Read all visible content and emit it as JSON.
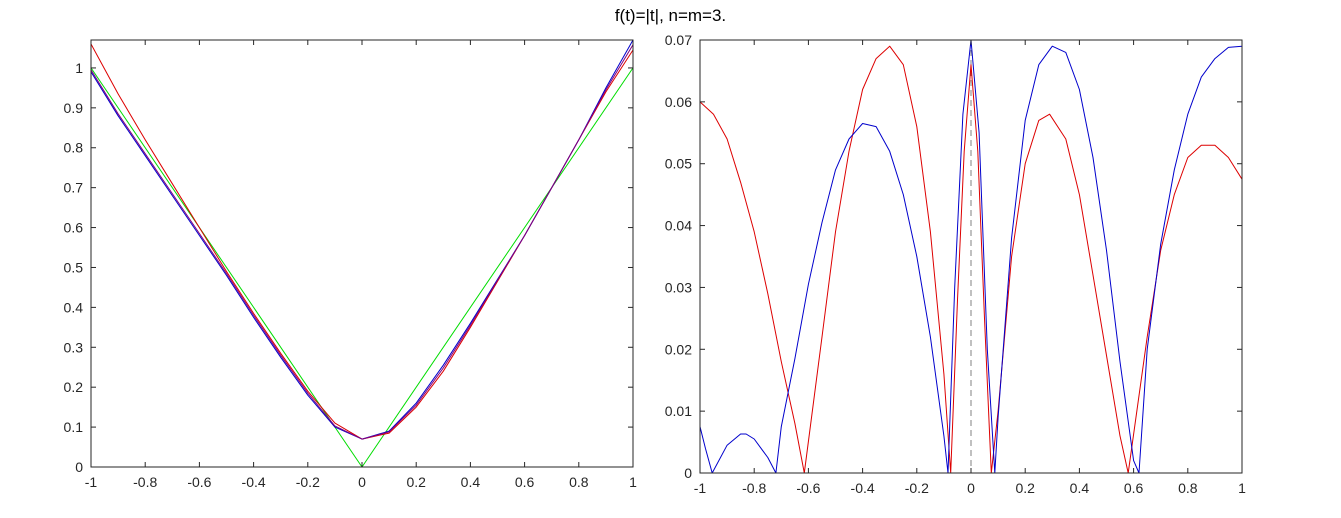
{
  "figure": {
    "title": "f(t)=|t|, n=m=3."
  },
  "chart_data": [
    {
      "type": "line",
      "title": "",
      "xlabel": "",
      "ylabel": "",
      "xlim": [
        -1,
        1
      ],
      "ylim": [
        0,
        1.07
      ],
      "xticks": [
        -1,
        -0.8,
        -0.6,
        -0.4,
        -0.2,
        0,
        0.2,
        0.4,
        0.6,
        0.8,
        1
      ],
      "xtick_labels": [
        "-1",
        "-0.8",
        "-0.6",
        "-0.4",
        "-0.2",
        "0",
        "0.2",
        "0.4",
        "0.6",
        "0.8",
        "1"
      ],
      "yticks": [
        0,
        0.1,
        0.2,
        0.3,
        0.4,
        0.5,
        0.6,
        0.7,
        0.8,
        0.9,
        1
      ],
      "ytick_labels": [
        "0",
        "0.1",
        "0.2",
        "0.3",
        "0.4",
        "0.5",
        "0.6",
        "0.7",
        "0.8",
        "0.9",
        "1"
      ],
      "grid": false,
      "legend": "none",
      "series": [
        {
          "color": "#00dd00",
          "x": [
            -1,
            0,
            1
          ],
          "y": [
            1,
            0,
            1
          ]
        },
        {
          "color": "#dd0000",
          "x": [
            -1,
            -0.9,
            -0.8,
            -0.7,
            -0.6,
            -0.5,
            -0.4,
            -0.3,
            -0.2,
            -0.1,
            0,
            0.1,
            0.2,
            0.3,
            0.4,
            0.5,
            0.6,
            0.7,
            0.8,
            0.9,
            1
          ],
          "y": [
            1.06,
            0.935,
            0.82,
            0.71,
            0.6,
            0.49,
            0.385,
            0.285,
            0.19,
            0.11,
            0.07,
            0.085,
            0.15,
            0.24,
            0.35,
            0.465,
            0.58,
            0.7,
            0.82,
            0.94,
            1.045
          ]
        },
        {
          "color": "#0000cc",
          "x": [
            -1,
            -0.9,
            -0.8,
            -0.7,
            -0.6,
            -0.5,
            -0.4,
            -0.3,
            -0.2,
            -0.1,
            0,
            0.1,
            0.2,
            0.3,
            0.4,
            0.5,
            0.6,
            0.7,
            0.8,
            0.9,
            1
          ],
          "y": [
            0.99,
            0.88,
            0.78,
            0.68,
            0.58,
            0.48,
            0.375,
            0.275,
            0.18,
            0.1,
            0.07,
            0.09,
            0.16,
            0.255,
            0.36,
            0.47,
            0.58,
            0.7,
            0.82,
            0.95,
            1.07
          ]
        },
        {
          "color": "#800080",
          "x": [
            -1,
            -0.9,
            -0.8,
            -0.7,
            -0.6,
            -0.5,
            -0.4,
            -0.3,
            -0.2,
            -0.1,
            0,
            0.1,
            0.2,
            0.3,
            0.4,
            0.5,
            0.6,
            0.7,
            0.8,
            0.9,
            1
          ],
          "y": [
            0.995,
            0.885,
            0.785,
            0.685,
            0.585,
            0.485,
            0.38,
            0.28,
            0.185,
            0.103,
            0.07,
            0.088,
            0.155,
            0.248,
            0.355,
            0.468,
            0.58,
            0.7,
            0.82,
            0.945,
            1.058
          ]
        }
      ]
    },
    {
      "type": "line",
      "title": "",
      "xlabel": "",
      "ylabel": "",
      "xlim": [
        -1,
        1
      ],
      "ylim": [
        0,
        0.07
      ],
      "xticks": [
        -1,
        -0.8,
        -0.6,
        -0.4,
        -0.2,
        0,
        0.2,
        0.4,
        0.6,
        0.8,
        1
      ],
      "xtick_labels": [
        "-1",
        "-0.8",
        "-0.6",
        "-0.4",
        "-0.2",
        "0",
        "0.2",
        "0.4",
        "0.6",
        "0.8",
        "1"
      ],
      "yticks": [
        0,
        0.01,
        0.02,
        0.03,
        0.04,
        0.05,
        0.06,
        0.07
      ],
      "ytick_labels": [
        "0",
        "0.01",
        "0.02",
        "0.03",
        "0.04",
        "0.05",
        "0.06",
        "0.07"
      ],
      "grid": false,
      "legend": "none",
      "vline": {
        "x": 0,
        "style": "dashed",
        "color": "#808080"
      },
      "series": [
        {
          "color": "#dd0000",
          "x": [
            -1,
            -0.95,
            -0.9,
            -0.85,
            -0.8,
            -0.75,
            -0.7,
            -0.65,
            -0.615,
            -0.55,
            -0.5,
            -0.45,
            -0.4,
            -0.35,
            -0.3,
            -0.25,
            -0.2,
            -0.15,
            -0.1,
            -0.075,
            -0.05,
            -0.025,
            0,
            0.025,
            0.05,
            0.075,
            0.1,
            0.15,
            0.2,
            0.25,
            0.29,
            0.35,
            0.4,
            0.45,
            0.5,
            0.55,
            0.58,
            0.65,
            0.7,
            0.75,
            0.8,
            0.85,
            0.9,
            0.95,
            1
          ],
          "y": [
            0.06,
            0.058,
            0.054,
            0.047,
            0.039,
            0.029,
            0.018,
            0.008,
            0,
            0.022,
            0.039,
            0.052,
            0.062,
            0.067,
            0.069,
            0.066,
            0.056,
            0.039,
            0.016,
            0,
            0.028,
            0.052,
            0.066,
            0.052,
            0.025,
            0,
            0.01,
            0.035,
            0.05,
            0.057,
            0.058,
            0.054,
            0.045,
            0.032,
            0.019,
            0.006,
            0,
            0.022,
            0.036,
            0.045,
            0.051,
            0.053,
            0.053,
            0.051,
            0.0475
          ]
        },
        {
          "color": "#0000cc",
          "x": [
            -1,
            -0.98,
            -0.955,
            -0.9,
            -0.85,
            -0.83,
            -0.8,
            -0.75,
            -0.72,
            -0.7,
            -0.65,
            -0.6,
            -0.55,
            -0.5,
            -0.45,
            -0.4,
            -0.35,
            -0.3,
            -0.25,
            -0.2,
            -0.15,
            -0.1,
            -0.085,
            -0.06,
            -0.03,
            0,
            0.03,
            0.06,
            0.088,
            0.1,
            0.15,
            0.2,
            0.25,
            0.3,
            0.35,
            0.4,
            0.45,
            0.5,
            0.55,
            0.6,
            0.62,
            0.65,
            0.7,
            0.75,
            0.8,
            0.85,
            0.9,
            0.95,
            1
          ],
          "y": [
            0.0075,
            0.004,
            0,
            0.0045,
            0.0063,
            0.0063,
            0.0055,
            0.0025,
            0,
            0.0075,
            0.0185,
            0.0305,
            0.0405,
            0.049,
            0.054,
            0.0565,
            0.056,
            0.052,
            0.045,
            0.035,
            0.022,
            0.006,
            0,
            0.03,
            0.058,
            0.07,
            0.055,
            0.02,
            0,
            0.009,
            0.038,
            0.057,
            0.066,
            0.069,
            0.068,
            0.062,
            0.051,
            0.036,
            0.018,
            0.002,
            0,
            0.02,
            0.037,
            0.049,
            0.058,
            0.064,
            0.067,
            0.0688,
            0.069
          ]
        }
      ]
    }
  ]
}
